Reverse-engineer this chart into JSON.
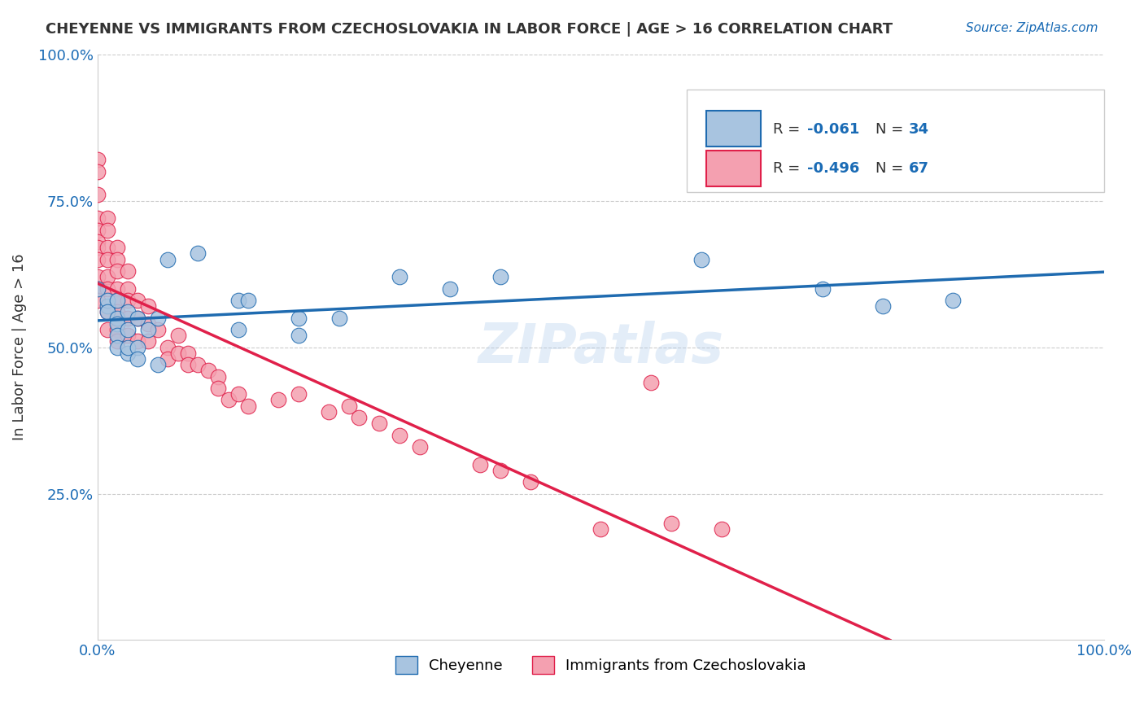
{
  "title": "CHEYENNE VS IMMIGRANTS FROM CZECHOSLOVAKIA IN LABOR FORCE | AGE > 16 CORRELATION CHART",
  "source_text": "Source: ZipAtlas.com",
  "ylabel": "In Labor Force | Age > 16",
  "xlim": [
    0.0,
    1.0
  ],
  "ylim": [
    0.0,
    1.0
  ],
  "cheyenne_color": "#a8c4e0",
  "cheyenne_line_color": "#1f6bb0",
  "czech_color": "#f4a0b0",
  "czech_line_color": "#e0204a",
  "background_color": "#ffffff",
  "grid_color": "#cccccc",
  "watermark": "ZIPatlas",
  "legend_label1": "Cheyenne",
  "legend_label2": "Immigrants from Czechoslovakia",
  "r1": "-0.061",
  "n1": "34",
  "r2": "-0.496",
  "n2": "67",
  "cheyenne_x": [
    0.0,
    0.01,
    0.01,
    0.01,
    0.02,
    0.02,
    0.02,
    0.02,
    0.02,
    0.03,
    0.03,
    0.03,
    0.03,
    0.04,
    0.04,
    0.04,
    0.05,
    0.06,
    0.06,
    0.07,
    0.1,
    0.14,
    0.14,
    0.15,
    0.2,
    0.2,
    0.24,
    0.3,
    0.35,
    0.4,
    0.6,
    0.72,
    0.78,
    0.85
  ],
  "cheyenne_y": [
    0.6,
    0.57,
    0.58,
    0.56,
    0.55,
    0.54,
    0.58,
    0.52,
    0.5,
    0.53,
    0.56,
    0.49,
    0.5,
    0.55,
    0.5,
    0.48,
    0.53,
    0.55,
    0.47,
    0.65,
    0.66,
    0.58,
    0.53,
    0.58,
    0.55,
    0.52,
    0.55,
    0.62,
    0.6,
    0.62,
    0.65,
    0.6,
    0.57,
    0.58
  ],
  "czech_x": [
    0.0,
    0.0,
    0.0,
    0.0,
    0.0,
    0.0,
    0.0,
    0.0,
    0.0,
    0.0,
    0.0,
    0.01,
    0.01,
    0.01,
    0.01,
    0.01,
    0.01,
    0.01,
    0.01,
    0.02,
    0.02,
    0.02,
    0.02,
    0.02,
    0.02,
    0.02,
    0.02,
    0.03,
    0.03,
    0.03,
    0.03,
    0.03,
    0.04,
    0.04,
    0.04,
    0.05,
    0.05,
    0.05,
    0.06,
    0.07,
    0.07,
    0.08,
    0.08,
    0.09,
    0.09,
    0.1,
    0.11,
    0.12,
    0.12,
    0.13,
    0.14,
    0.15,
    0.18,
    0.2,
    0.23,
    0.25,
    0.26,
    0.28,
    0.3,
    0.32,
    0.38,
    0.4,
    0.43,
    0.5,
    0.55,
    0.57,
    0.62
  ],
  "czech_y": [
    0.82,
    0.8,
    0.76,
    0.72,
    0.7,
    0.68,
    0.67,
    0.65,
    0.62,
    0.6,
    0.58,
    0.72,
    0.7,
    0.67,
    0.65,
    0.62,
    0.6,
    0.56,
    0.53,
    0.67,
    0.65,
    0.63,
    0.6,
    0.58,
    0.56,
    0.53,
    0.51,
    0.63,
    0.6,
    0.58,
    0.55,
    0.52,
    0.58,
    0.55,
    0.51,
    0.57,
    0.54,
    0.51,
    0.53,
    0.5,
    0.48,
    0.52,
    0.49,
    0.49,
    0.47,
    0.47,
    0.46,
    0.45,
    0.43,
    0.41,
    0.42,
    0.4,
    0.41,
    0.42,
    0.39,
    0.4,
    0.38,
    0.37,
    0.35,
    0.33,
    0.3,
    0.29,
    0.27,
    0.19,
    0.44,
    0.2,
    0.19
  ]
}
